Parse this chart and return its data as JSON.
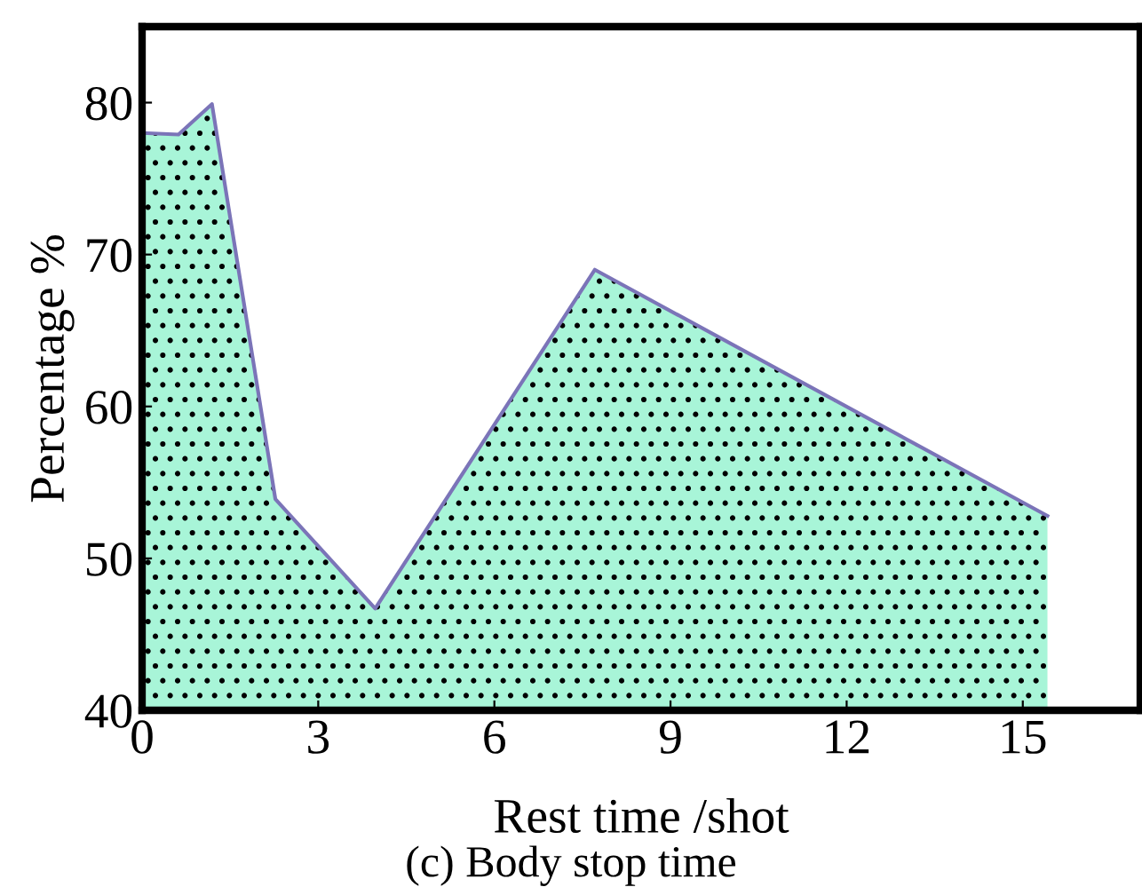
{
  "chart_data": {
    "type": "area",
    "xlabel": "Rest time /shot",
    "ylabel": "Percentage %",
    "annotations": [
      "(c) Body stop time"
    ],
    "x": [
      0,
      0.62,
      1.19,
      2.27,
      3.97,
      7.71,
      15.42
    ],
    "series": [
      {
        "color": "#a8f5d8",
        "values": [
          78.0,
          77.9,
          79.9,
          53.9,
          46.7,
          69.0,
          52.8
        ]
      }
    ],
    "xlim": [
      0,
      17
    ],
    "ylim": [
      40,
      85
    ],
    "xticks": [
      0,
      3,
      6,
      9,
      12,
      15
    ],
    "yticks": [
      40,
      50,
      60,
      70,
      80
    ],
    "grid": false,
    "legend": false
  }
}
